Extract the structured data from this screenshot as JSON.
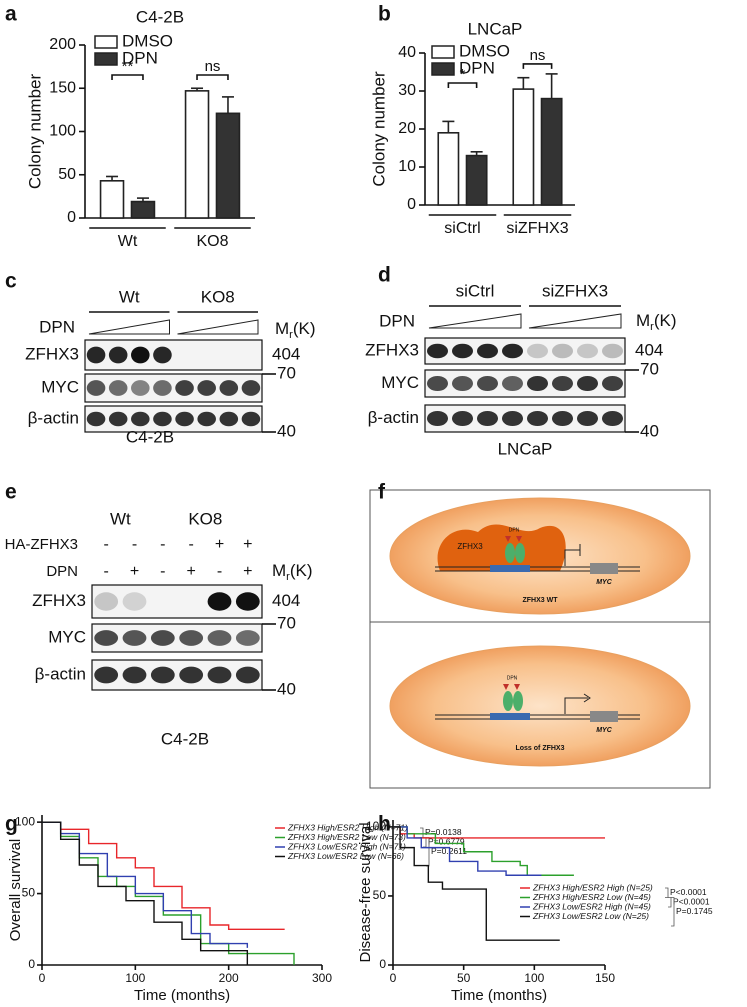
{
  "panel_labels": [
    "a",
    "b",
    "c",
    "d",
    "e",
    "f",
    "g",
    "h"
  ],
  "chart_data": [
    {
      "type": "bar",
      "title": "C4-2B",
      "y_label": "Colony number",
      "categories": [
        "Wt",
        "KO8"
      ],
      "series": [
        {
          "name": "DMSO",
          "color": "#ffffff",
          "values": [
            43,
            147
          ],
          "errors": [
            5,
            3
          ]
        },
        {
          "name": "DPN",
          "color": "#333333",
          "values": [
            19,
            121
          ],
          "errors": [
            4,
            19
          ]
        }
      ],
      "ylim": [
        0,
        200
      ],
      "yticks": [
        0,
        50,
        100,
        150,
        200
      ],
      "significance": [
        "**",
        "ns"
      ]
    },
    {
      "type": "bar",
      "title": "LNCaP",
      "y_label": "Colony number",
      "categories": [
        "siCtrl",
        "siZFHX3"
      ],
      "series": [
        {
          "name": "DMSO",
          "color": "#ffffff",
          "values": [
            19,
            30.5
          ],
          "errors": [
            3,
            3
          ]
        },
        {
          "name": "DPN",
          "color": "#333333",
          "values": [
            13,
            28
          ],
          "errors": [
            1,
            6.5
          ]
        }
      ],
      "ylim": [
        0,
        40
      ],
      "yticks": [
        0,
        10,
        20,
        30,
        40
      ],
      "significance": [
        "*",
        "ns"
      ]
    },
    {
      "type": "line",
      "step": true,
      "x_label": "Time (months)",
      "y_label": "Overall survival",
      "xlim": [
        0,
        300
      ],
      "xticks": [
        0,
        100,
        200,
        300
      ],
      "ylim": [
        0,
        105
      ],
      "yticks": [
        0,
        50,
        100
      ],
      "series": [
        {
          "name": "ZFHX3 High/ESR2 High (N=71)",
          "color": "#e8262a",
          "x": [
            0,
            20,
            50,
            80,
            100,
            120,
            150,
            180,
            200,
            260
          ],
          "values": [
            100,
            95,
            85,
            75,
            68,
            55,
            40,
            28,
            25,
            25
          ]
        },
        {
          "name": "ZFHX3 High/ESR2 Low (N=73)",
          "color": "#2ca02c",
          "x": [
            0,
            20,
            40,
            60,
            80,
            100,
            130,
            170,
            200,
            270
          ],
          "values": [
            100,
            90,
            75,
            62,
            55,
            48,
            35,
            15,
            8,
            0
          ]
        },
        {
          "name": "ZFHX3 Low/ESR2 High (N=71)",
          "color": "#3040b0",
          "x": [
            0,
            20,
            40,
            70,
            100,
            130,
            160,
            180,
            220
          ],
          "values": [
            100,
            92,
            78,
            62,
            50,
            38,
            22,
            15,
            12
          ]
        },
        {
          "name": "ZFHX3 Low/ESR2 Low (N=66)",
          "color": "#111111",
          "x": [
            0,
            20,
            40,
            60,
            90,
            120,
            150,
            170,
            190,
            220
          ],
          "values": [
            100,
            88,
            70,
            55,
            45,
            30,
            18,
            10,
            10,
            0
          ]
        }
      ],
      "p_values": [
        "P=0.0138",
        "P=0.6779",
        "P=0.2611"
      ]
    },
    {
      "type": "line",
      "step": true,
      "x_label": "Time (months)",
      "y_label": "Disease-free survival",
      "xlim": [
        0,
        150
      ],
      "xticks": [
        0,
        50,
        100,
        150
      ],
      "ylim": [
        0,
        105
      ],
      "yticks": [
        0,
        50,
        100
      ],
      "series": [
        {
          "name": "ZFHX3 High/ESR2 High (N=25)",
          "color": "#e8262a",
          "x": [
            0,
            5,
            15,
            150
          ],
          "values": [
            100,
            95,
            92,
            92
          ]
        },
        {
          "name": "ZFHX3 High/ESR2 Low (N=45)",
          "color": "#2ca02c",
          "x": [
            0,
            10,
            30,
            50,
            70,
            90,
            95,
            128
          ],
          "values": [
            100,
            95,
            88,
            82,
            75,
            72,
            65,
            65
          ]
        },
        {
          "name": "ZFHX3 Low/ESR2 High (N=45)",
          "color": "#3040b0",
          "x": [
            0,
            10,
            20,
            40,
            60,
            80,
            105
          ],
          "values": [
            100,
            92,
            85,
            75,
            68,
            65,
            65
          ]
        },
        {
          "name": "ZFHX3 Low/ESR2 Low (N=25)",
          "color": "#111111",
          "x": [
            0,
            5,
            15,
            25,
            35,
            65,
            66,
            118
          ],
          "values": [
            100,
            85,
            72,
            60,
            55,
            55,
            18,
            18
          ]
        }
      ],
      "p_values": [
        "P<0.0001",
        "P<0.0001",
        "P=0.1745"
      ]
    }
  ],
  "blots": [
    {
      "groups": [
        "Wt",
        "KO8"
      ],
      "treatment": "DPN",
      "rows": [
        "ZFHX3",
        "MYC",
        "β-actin"
      ],
      "markers": [
        "404",
        "70",
        "40"
      ],
      "cell_line": "C4-2B",
      "mr": {
        "main": "M",
        "sub": "r",
        "unit": "(K)"
      }
    },
    {
      "groups": [
        "siCtrl",
        "siZFHX3"
      ],
      "treatment": "DPN",
      "rows": [
        "ZFHX3",
        "MYC",
        "β-actin"
      ],
      "markers": [
        "404",
        "70",
        "40"
      ],
      "cell_line": "LNCaP",
      "mr": {
        "main": "M",
        "sub": "r",
        "unit": "(K)"
      }
    },
    {
      "groups": [
        "Wt",
        "KO8"
      ],
      "conditions": [
        {
          "name": "HA-ZFHX3",
          "signs": [
            "-",
            "-",
            "-",
            "-",
            "+",
            "+"
          ]
        },
        {
          "name": "DPN",
          "signs": [
            "-",
            "+",
            "-",
            "+",
            "-",
            "+"
          ]
        }
      ],
      "rows": [
        "ZFHX3",
        "MYC",
        "β-actin"
      ],
      "markers": [
        "404",
        "70",
        "40"
      ],
      "cell_line": "C4-2B",
      "mr": {
        "main": "M",
        "sub": "r",
        "unit": "(K)"
      }
    }
  ],
  "diagram": {
    "top": {
      "protein": "ZFHX3",
      "ligand": "DPN",
      "gene": "MYC",
      "caption": "ZFHX3 WT"
    },
    "bottom": {
      "ligand": "DPN",
      "gene": "MYC",
      "caption": "Loss of ZFHX3"
    }
  }
}
